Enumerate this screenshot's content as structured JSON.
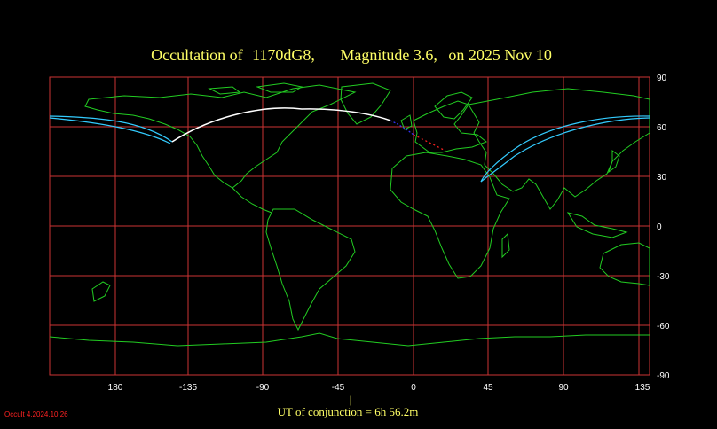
{
  "title": {
    "prefix": "Occultation  of",
    "star": "1170dG8,",
    "magnitude": "Magnitude 3.6,",
    "date": "on  2025 Nov 10"
  },
  "axes": {
    "longitude_labels": [
      "180",
      "-135",
      "-90",
      "-45",
      "0",
      "45",
      "90",
      "135"
    ],
    "latitude_labels": [
      "90",
      "60",
      "30",
      "0",
      "-30",
      "-60",
      "-90"
    ]
  },
  "conjunction": {
    "marker": "|",
    "label": "UT of conjunction =  6h 56.2m"
  },
  "version_label": "Occult 4.2024.10.26",
  "colors": {
    "background": "#000000",
    "grid": "#cc3333",
    "coastline": "#22cc22",
    "title": "#ffff66",
    "limit_line": "#33ccff",
    "central_line": "#ffffff",
    "daylight_path": "#3333ff",
    "twilight_path": "#ff2222"
  }
}
